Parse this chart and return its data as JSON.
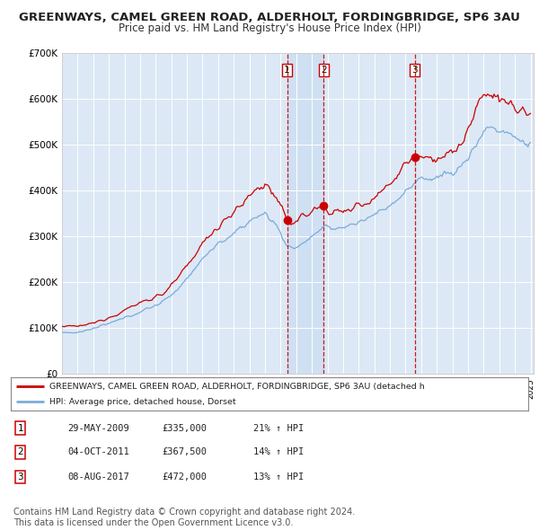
{
  "title": "GREENWAYS, CAMEL GREEN ROAD, ALDERHOLT, FORDINGBRIDGE, SP6 3AU",
  "subtitle": "Price paid vs. HM Land Registry's House Price Index (HPI)",
  "title_fontsize": 9.5,
  "subtitle_fontsize": 8.5,
  "background_color": "#ffffff",
  "plot_bg_color": "#dce8f5",
  "grid_color": "#ffffff",
  "red_line_color": "#cc0000",
  "blue_line_color": "#7aabdb",
  "ylabel": "",
  "ylim": [
    0,
    700000
  ],
  "yticks": [
    0,
    100000,
    200000,
    300000,
    400000,
    500000,
    600000,
    700000
  ],
  "ytick_labels": [
    "£0",
    "£100K",
    "£200K",
    "£300K",
    "£400K",
    "£500K",
    "£600K",
    "£700K"
  ],
  "sale_dates": [
    2009.41,
    2011.75,
    2017.6
  ],
  "sale_prices": [
    335000,
    367500,
    472000
  ],
  "sale_labels": [
    "1",
    "2",
    "3"
  ],
  "sale_vline_color": "#cc0000",
  "legend_label_red": "GREENWAYS, CAMEL GREEN ROAD, ALDERHOLT, FORDINGBRIDGE, SP6 3AU (detached h",
  "legend_label_blue": "HPI: Average price, detached house, Dorset",
  "table_rows": [
    [
      "1",
      "29-MAY-2009",
      "£335,000",
      "21% ↑ HPI"
    ],
    [
      "2",
      "04-OCT-2011",
      "£367,500",
      "14% ↑ HPI"
    ],
    [
      "3",
      "08-AUG-2017",
      "£472,000",
      "13% ↑ HPI"
    ]
  ],
  "footnote": "Contains HM Land Registry data © Crown copyright and database right 2024.\nThis data is licensed under the Open Government Licence v3.0.",
  "footnote_fontsize": 7
}
